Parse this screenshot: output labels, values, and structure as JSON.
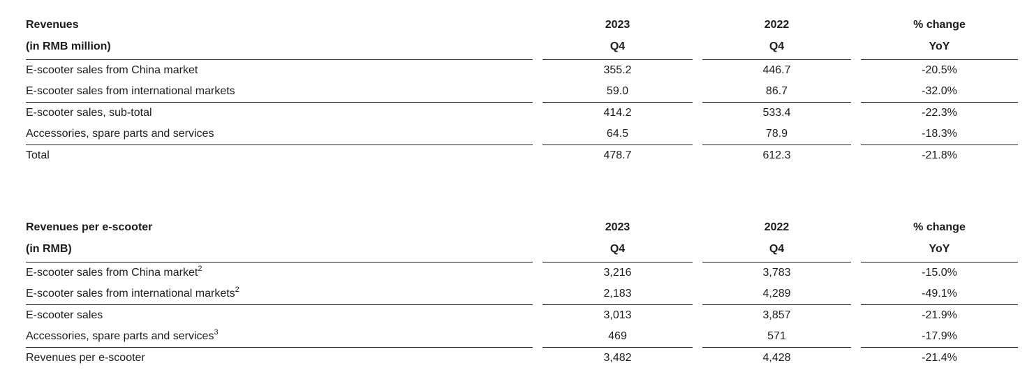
{
  "page": {
    "background": "#ffffff",
    "text_color": "#1c1c1c",
    "rule_color": "#1c1c1c"
  },
  "tables": [
    {
      "header": {
        "title_line1": "Revenues",
        "title_line2": "(in RMB million)",
        "columns": [
          {
            "line1": "2023",
            "line2": "Q4"
          },
          {
            "line1": "2022",
            "line2": "Q4"
          },
          {
            "line1": "% change",
            "line2": "YoY"
          }
        ]
      },
      "rows": [
        {
          "label": "E-scooter sales from China market",
          "sup": "",
          "v2023": "355.2",
          "v2022": "446.7",
          "yoy": "-20.5%"
        },
        {
          "label": "E-scooter sales from international markets",
          "sup": "",
          "v2023": "59.0",
          "v2022": "86.7",
          "yoy": "-32.0%"
        },
        {
          "label": "E-scooter sales, sub-total",
          "sup": "",
          "v2023": "414.2",
          "v2022": "533.4",
          "yoy": "-22.3%"
        },
        {
          "label": "Accessories, spare parts and services",
          "sup": "",
          "v2023": "64.5",
          "v2022": "78.9",
          "yoy": "-18.3%"
        },
        {
          "label": "Total",
          "sup": "",
          "v2023": "478.7",
          "v2022": "612.3",
          "yoy": "-21.8%"
        }
      ]
    },
    {
      "header": {
        "title_line1": "Revenues per e-scooter",
        "title_line2": "(in RMB)",
        "columns": [
          {
            "line1": "2023",
            "line2": "Q4"
          },
          {
            "line1": "2022",
            "line2": "Q4"
          },
          {
            "line1": "% change",
            "line2": "YoY"
          }
        ]
      },
      "rows": [
        {
          "label": "E-scooter sales from China market",
          "sup": "2",
          "v2023": "3,216",
          "v2022": "3,783",
          "yoy": "-15.0%"
        },
        {
          "label": "E-scooter sales from international markets",
          "sup": "2",
          "v2023": "2,183",
          "v2022": "4,289",
          "yoy": "-49.1%"
        },
        {
          "label": "E-scooter sales",
          "sup": "",
          "v2023": "3,013",
          "v2022": "3,857",
          "yoy": "-21.9%"
        },
        {
          "label": "Accessories, spare parts and services",
          "sup": "3",
          "v2023": "469",
          "v2022": "571",
          "yoy": "-17.9%"
        },
        {
          "label": "Revenues per e-scooter",
          "sup": "",
          "v2023": "3,482",
          "v2022": "4,428",
          "yoy": "-21.4%"
        }
      ]
    }
  ]
}
